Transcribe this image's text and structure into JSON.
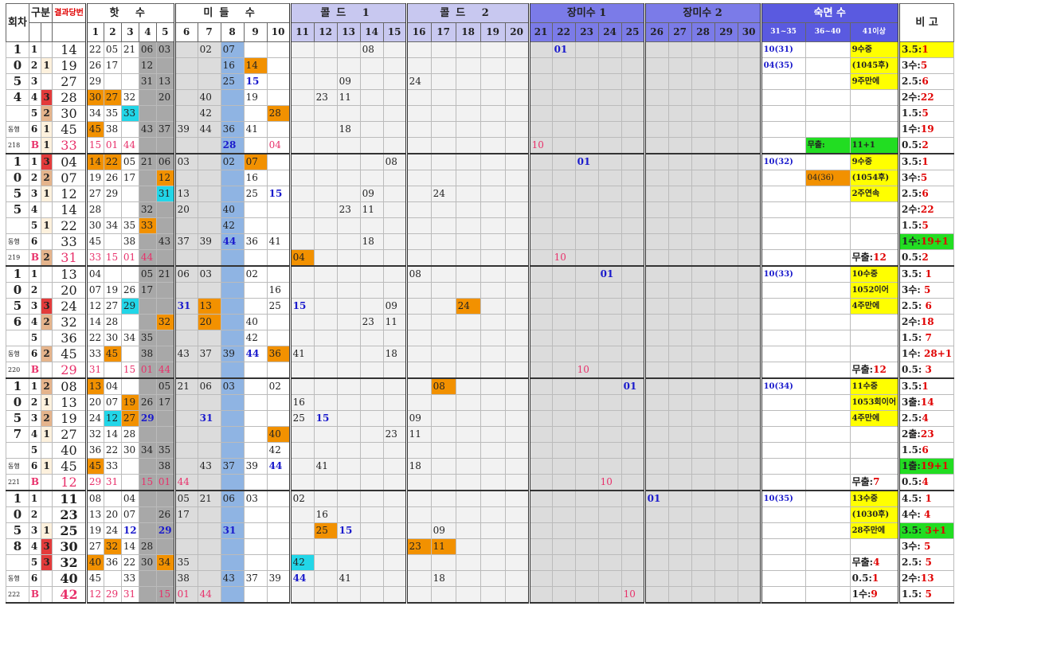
{
  "headers": {
    "round": "회차",
    "group": "구분",
    "result": "결과당번",
    "hot": "핫 수",
    "middle": "미들 수",
    "cold1": "콜드 1",
    "cold2": "콜드 2",
    "long1": "장미수 1",
    "long2": "장미수 2",
    "dormant": "숙면 수",
    "note": "비 고",
    "numbers": [
      "1",
      "2",
      "3",
      "4",
      "5",
      "6",
      "7",
      "8",
      "9",
      "10",
      "11",
      "12",
      "13",
      "14",
      "15",
      "16",
      "17",
      "18",
      "19",
      "20",
      "21",
      "22",
      "23",
      "24",
      "25",
      "26",
      "27",
      "28",
      "29",
      "30",
      "31~35",
      "36~40",
      "41이상"
    ]
  },
  "blocks": [
    {
      "round_digits": [
        "1",
        "0",
        "5",
        "4"
      ],
      "footer": [
        "동행",
        "218"
      ],
      "rows": [
        {
          "idx": "1",
          "gu": "",
          "res": "14",
          "cells": {
            "1": "22",
            "2": "05",
            "3": "21",
            "4": "06",
            "5": "03",
            "7": "02",
            "8": "07",
            "14": "08",
            "22": "01",
            "31": "10(31)",
            "41": "9수중"
          },
          "note": "3.5:1"
        },
        {
          "idx": "2",
          "gu": "1",
          "res": "19",
          "cells": {
            "1": "26",
            "2": "17",
            "4": "12",
            "8": "16",
            "9": "14",
            "31": "04(35)",
            "41": "(1045후)"
          },
          "note": "3수:5"
        },
        {
          "idx": "3",
          "gu": "",
          "res": "27",
          "cells": {
            "1": "29",
            "4": "31",
            "5": "13",
            "8": "25",
            "9": "15",
            "13": "09",
            "16": "24",
            "41": "9주만에"
          },
          "note": "2.5:6"
        },
        {
          "idx": "4",
          "gu": "3",
          "res": "28",
          "cells": {
            "1": "30",
            "2": "27",
            "3": "32",
            "5": "20",
            "7": "40",
            "9": "19",
            "12": "23",
            "13": "11"
          },
          "note": "2수:22"
        },
        {
          "idx": "5",
          "gu": "2",
          "res": "30",
          "cells": {
            "1": "34",
            "2": "35",
            "3": "33",
            "7": "42",
            "10": "28"
          },
          "note": "1.5:5"
        },
        {
          "idx": "6",
          "gu": "1",
          "res": "45",
          "cells": {
            "1": "45",
            "2": "38",
            "4": "43",
            "5": "37",
            "6": "39",
            "7": "44",
            "8": "36",
            "9": "41",
            "13": "18"
          },
          "note": "1수:19"
        },
        {
          "idx": "B",
          "gu": "1",
          "res": "33",
          "cells": {
            "1": "15",
            "2": "01",
            "3": "44",
            "8": "28",
            "10": "04",
            "21": "10",
            "36": "무출:",
            "41": "11+1"
          },
          "note": "0.5:2"
        }
      ]
    },
    {
      "round_digits": [
        "1",
        "0",
        "5",
        "5"
      ],
      "footer": [
        "동행",
        "219"
      ],
      "rows": [
        {
          "idx": "1",
          "gu": "3",
          "res": "04",
          "cells": {
            "1": "14",
            "2": "22",
            "3": "05",
            "4": "21",
            "5": "06",
            "6": "03",
            "8": "02",
            "9": "07",
            "15": "08",
            "23": "01",
            "31": "10(32)",
            "41": "9수중"
          },
          "note": "3.5:1"
        },
        {
          "idx": "2",
          "gu": "2",
          "res": "07",
          "cells": {
            "1": "19",
            "2": "26",
            "3": "17",
            "5": "12",
            "9": "16",
            "36": "04(36)",
            "41": "(1054후)"
          },
          "note": "3수:5"
        },
        {
          "idx": "3",
          "gu": "1",
          "res": "12",
          "cells": {
            "1": "27",
            "2": "29",
            "5": "31",
            "6": "13",
            "9": "25",
            "10": "15",
            "14": "09",
            "17": "24",
            "41": "2주연속"
          },
          "note": "2.5:6"
        },
        {
          "idx": "4",
          "gu": "",
          "res": "14",
          "cells": {
            "1": "28",
            "4": "32",
            "6": "20",
            "8": "40",
            "13": "23",
            "14": "11"
          },
          "note": "2수:22"
        },
        {
          "idx": "5",
          "gu": "1",
          "res": "22",
          "cells": {
            "1": "30",
            "2": "34",
            "3": "35",
            "4": "33",
            "8": "42"
          },
          "note": "1.5:5"
        },
        {
          "idx": "6",
          "gu": "",
          "res": "33",
          "cells": {
            "1": "45",
            "3": "38",
            "5": "43",
            "6": "37",
            "7": "39",
            "8": "44",
            "9": "36",
            "10": "41",
            "14": "18"
          },
          "note": "1수:19+1"
        },
        {
          "idx": "B",
          "gu": "2",
          "res": "31",
          "cells": {
            "1": "33",
            "2": "15",
            "3": "01",
            "4": "44",
            "11": "04",
            "22": "10",
            "41": "무출:12"
          },
          "note": "0.5:2"
        }
      ]
    },
    {
      "round_digits": [
        "1",
        "0",
        "5",
        "6"
      ],
      "footer": [
        "동행",
        "220"
      ],
      "rows": [
        {
          "idx": "1",
          "gu": "",
          "res": "13",
          "cells": {
            "1": "04",
            "4": "05",
            "5": "21",
            "6": "06",
            "7": "03",
            "9": "02",
            "16": "08",
            "24": "01",
            "31": "10(33)",
            "41": "10수중"
          },
          "note": "3.5: 1"
        },
        {
          "idx": "2",
          "gu": "",
          "res": "20",
          "cells": {
            "1": "07",
            "2": "19",
            "3": "26",
            "4": "17",
            "10": "16",
            "41": "1052이어"
          },
          "note": "3수: 5"
        },
        {
          "idx": "3",
          "gu": "3",
          "res": "24",
          "cells": {
            "1": "12",
            "2": "27",
            "3": "29",
            "6": "31",
            "7": "13",
            "10": "25",
            "11": "15",
            "15": "09",
            "18": "24",
            "41": "4주만에"
          },
          "note": "2.5: 6"
        },
        {
          "idx": "4",
          "gu": "2",
          "res": "32",
          "cells": {
            "1": "14",
            "2": "28",
            "5": "32",
            "7": "20",
            "9": "40",
            "14": "23",
            "15": "11"
          },
          "note": "2수:18"
        },
        {
          "idx": "5",
          "gu": "",
          "res": "36",
          "cells": {
            "1": "22",
            "2": "30",
            "3": "34",
            "4": "35",
            "9": "42"
          },
          "note": "1.5: 7"
        },
        {
          "idx": "6",
          "gu": "2",
          "res": "45",
          "cells": {
            "1": "33",
            "2": "45",
            "4": "38",
            "6": "43",
            "7": "37",
            "8": "39",
            "9": "44",
            "10": "36",
            "11": "41",
            "15": "18"
          },
          "note": "1수: 28+1"
        },
        {
          "idx": "B",
          "gu": "",
          "res": "29",
          "cells": {
            "1": "31",
            "3": "15",
            "4": "01",
            "5": "44",
            "23": "10",
            "41": "무출:12"
          },
          "note": "0.5: 3"
        }
      ]
    },
    {
      "round_digits": [
        "1",
        "0",
        "5",
        "7"
      ],
      "footer": [
        "동행",
        "221"
      ],
      "rows": [
        {
          "idx": "1",
          "gu": "2",
          "res": "08",
          "cells": {
            "1": "13",
            "2": "04",
            "5": "05",
            "6": "21",
            "7": "06",
            "8": "03",
            "10": "02",
            "17": "08",
            "25": "01",
            "31": "10(34)",
            "41": "11수중"
          },
          "note": "3.5:1"
        },
        {
          "idx": "2",
          "gu": "1",
          "res": "13",
          "cells": {
            "1": "20",
            "2": "07",
            "3": "19",
            "4": "26",
            "5": "17",
            "11": "16",
            "41": "1053회이어"
          },
          "note": "3출:14"
        },
        {
          "idx": "3",
          "gu": "2",
          "res": "19",
          "cells": {
            "1": "24",
            "2": "12",
            "3": "27",
            "4": "29",
            "7": "31",
            "11": "25",
            "12": "15",
            "16": "09",
            "41": "4주만에"
          },
          "note": "2.5:4"
        },
        {
          "idx": "4",
          "gu": "1",
          "res": "27",
          "cells": {
            "1": "32",
            "2": "14",
            "3": "28",
            "10": "40",
            "15": "23",
            "16": "11"
          },
          "note": "2출:23"
        },
        {
          "idx": "5",
          "gu": "",
          "res": "40",
          "cells": {
            "1": "36",
            "2": "22",
            "3": "30",
            "4": "34",
            "5": "35",
            "10": "42"
          },
          "note": "1.5:6"
        },
        {
          "idx": "6",
          "gu": "1",
          "res": "45",
          "cells": {
            "1": "45",
            "2": "33",
            "5": "38",
            "7": "43",
            "8": "37",
            "9": "39",
            "10": "44",
            "12": "41",
            "16": "18"
          },
          "note": "1출:19+1"
        },
        {
          "idx": "B",
          "gu": "",
          "res": "12",
          "cells": {
            "1": "29",
            "2": "31",
            "4": "15",
            "5": "01",
            "6": "44",
            "24": "10",
            "41": "무출:7"
          },
          "note": "0.5:4"
        }
      ]
    },
    {
      "round_digits": [
        "1",
        "0",
        "5",
        "8"
      ],
      "footer": [
        "동행",
        "222"
      ],
      "rows": [
        {
          "idx": "1",
          "gu": "",
          "res": "11",
          "cells": {
            "1": "08",
            "3": "04",
            "6": "05",
            "7": "21",
            "8": "06",
            "9": "03",
            "11": "02",
            "26": "01",
            "31": "10(35)",
            "41": "13수중"
          },
          "note": "4.5: 1"
        },
        {
          "idx": "2",
          "gu": "",
          "res": "23",
          "cells": {
            "1": "13",
            "2": "20",
            "3": "07",
            "5": "26",
            "6": "17",
            "12": "16",
            "41": "(1030후)"
          },
          "note": "4수: 4"
        },
        {
          "idx": "3",
          "gu": "1",
          "res": "25",
          "cells": {
            "1": "19",
            "2": "24",
            "3": "12",
            "5": "29",
            "8": "31",
            "12": "25",
            "13": "15",
            "17": "09",
            "41": "28주만에"
          },
          "note": "3.5: 3+1"
        },
        {
          "idx": "4",
          "gu": "3",
          "res": "30",
          "cells": {
            "1": "27",
            "2": "32",
            "3": "14",
            "4": "28",
            "16": "23",
            "17": "11"
          },
          "note": "3수: 5"
        },
        {
          "idx": "5",
          "gu": "3",
          "res": "32",
          "cells": {
            "1": "40",
            "2": "36",
            "3": "22",
            "4": "30",
            "5": "34",
            "6": "35",
            "11": "42",
            "41": "무출:4"
          },
          "note": "2.5: 5"
        },
        {
          "idx": "6",
          "gu": "",
          "res": "40",
          "cells": {
            "1": "45",
            "3": "33",
            "6": "38",
            "8": "43",
            "9": "37",
            "10": "39",
            "11": "44",
            "13": "41",
            "17": "18",
            "41": "0.5:1"
          },
          "note": "2수:13"
        },
        {
          "idx": "B",
          "gu": "",
          "res": "42",
          "cells": {
            "1": "12",
            "2": "29",
            "3": "31",
            "5": "15",
            "6": "01",
            "7": "44",
            "25": "10",
            "41": "1수:9"
          },
          "note": "1.5: 5"
        }
      ]
    }
  ]
}
